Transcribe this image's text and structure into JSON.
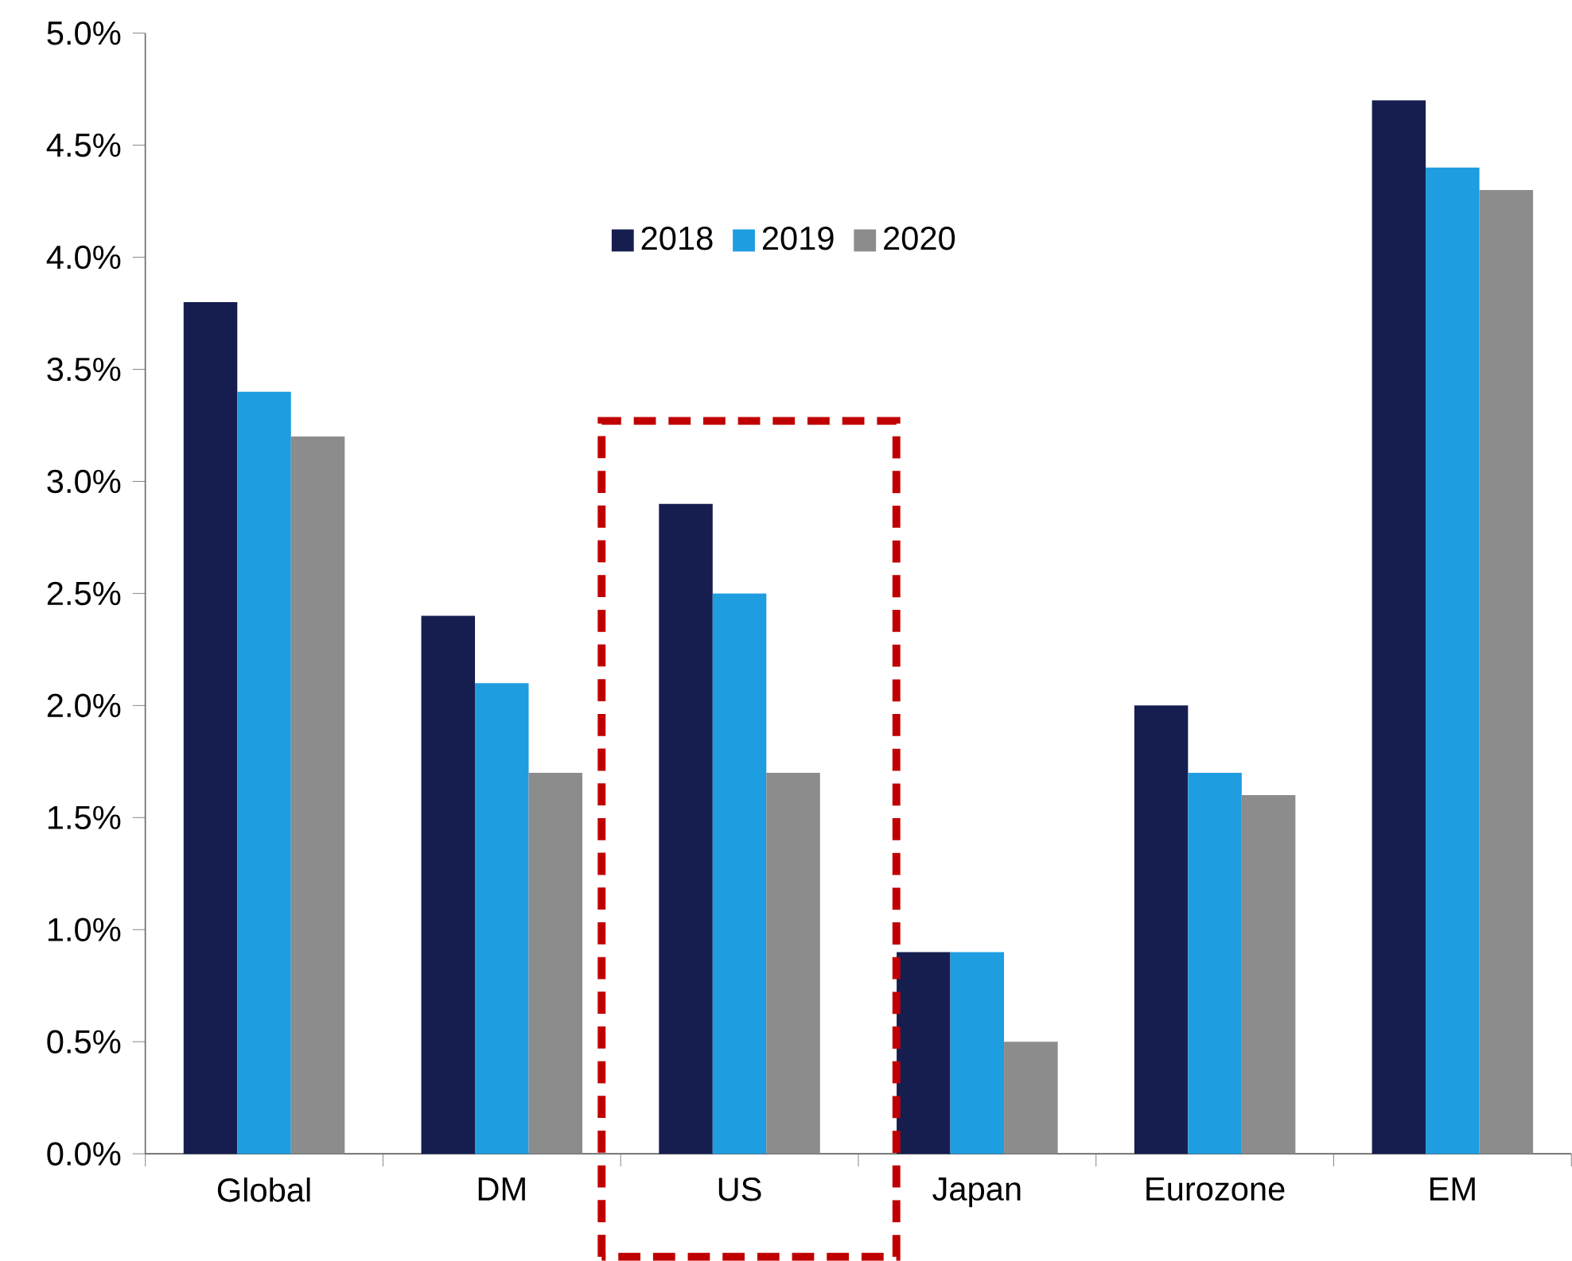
{
  "chart_data": {
    "type": "bar",
    "categories": [
      "Global",
      "DM",
      "US",
      "Japan",
      "Eurozone",
      "EM"
    ],
    "series": [
      {
        "name": "2018",
        "color": "#161e50",
        "values": [
          3.8,
          2.4,
          2.9,
          0.9,
          2.0,
          4.7
        ]
      },
      {
        "name": "2019",
        "color": "#1e9de0",
        "values": [
          3.4,
          2.1,
          2.5,
          0.9,
          1.7,
          4.4
        ]
      },
      {
        "name": "2020",
        "color": "#8c8c8c",
        "values": [
          3.2,
          1.7,
          1.7,
          0.5,
          1.6,
          4.3
        ]
      }
    ],
    "ylim": [
      0,
      5
    ],
    "yticks": [
      {
        "value": 0,
        "label": "0.0%"
      },
      {
        "value": 0.5,
        "label": "0.5%"
      },
      {
        "value": 1,
        "label": "1.0%"
      },
      {
        "value": 1.5,
        "label": "1.5%"
      },
      {
        "value": 2,
        "label": "2.0%"
      },
      {
        "value": 2.5,
        "label": "2.5%"
      },
      {
        "value": 3,
        "label": "3.0%"
      },
      {
        "value": 3.5,
        "label": "3.5%"
      },
      {
        "value": 4,
        "label": "4.0%"
      },
      {
        "value": 4.5,
        "label": "4.5%"
      },
      {
        "value": 5,
        "label": "5.0%"
      }
    ],
    "legend": "top"
  }
}
